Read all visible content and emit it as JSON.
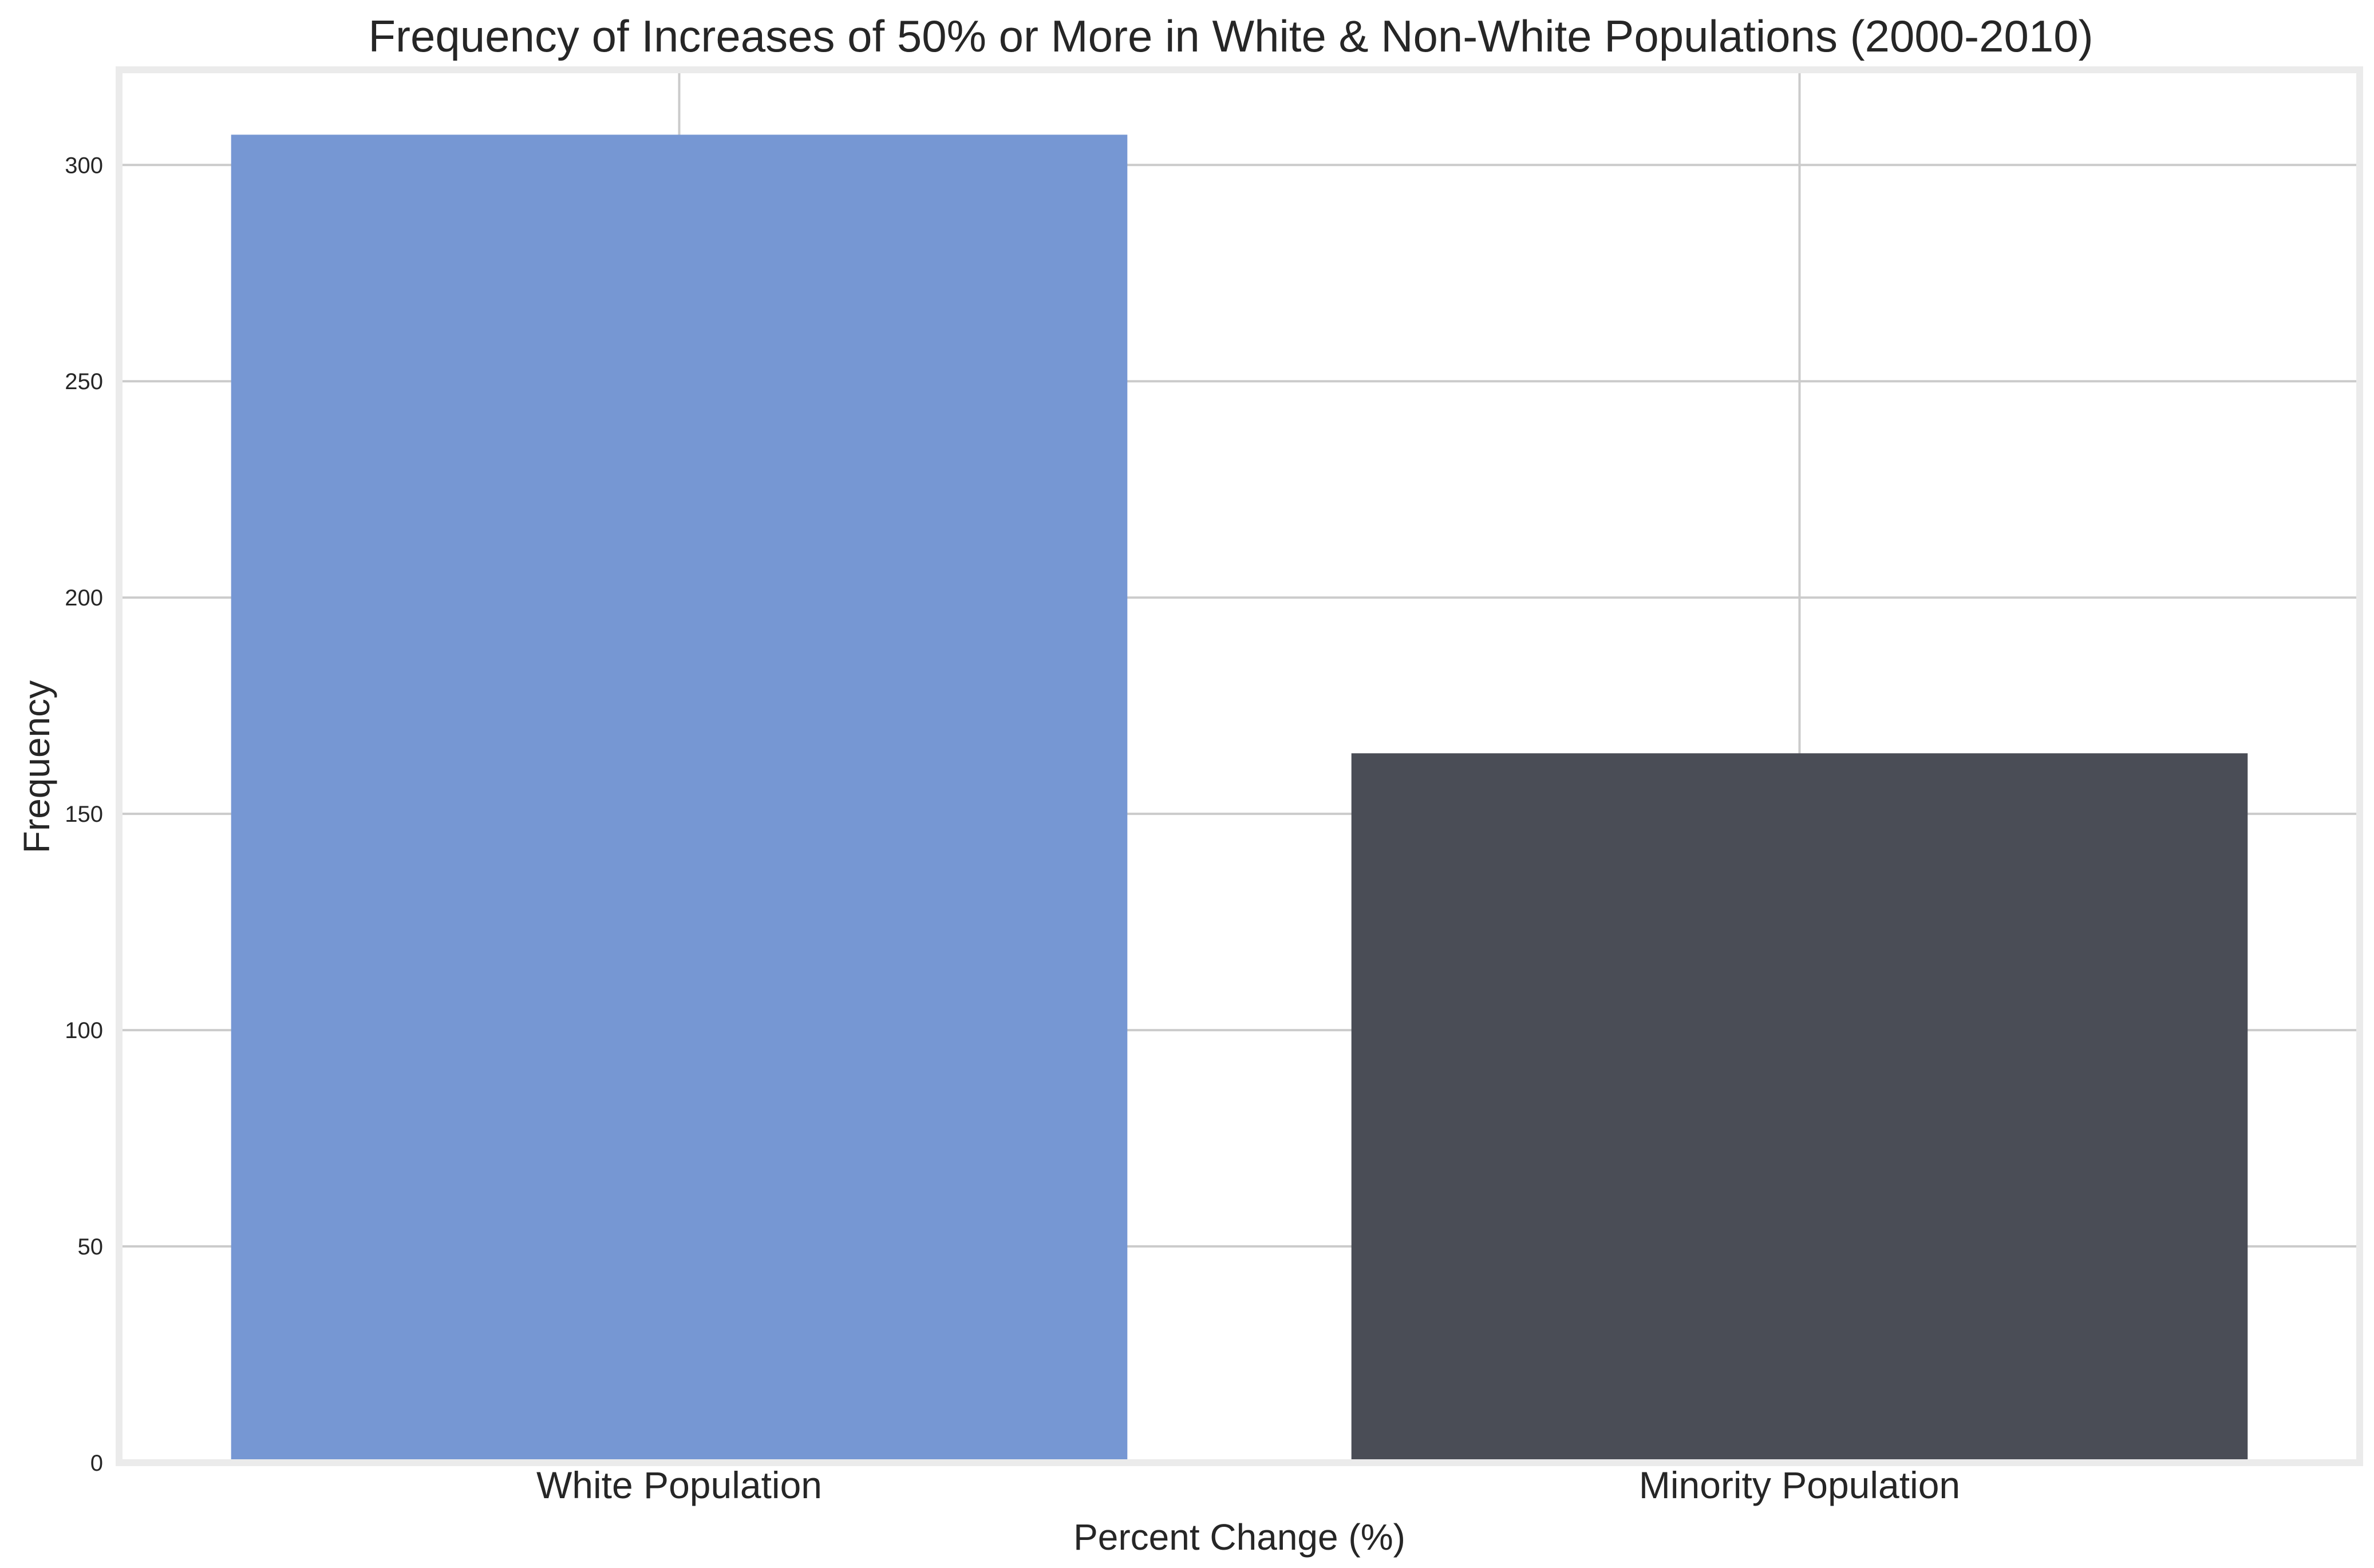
{
  "chart_data": {
    "type": "bar",
    "title": "Frequency of Increases of 50% or More in White & Non-White Populations (2000-2010)",
    "xlabel": "Percent Change (%)",
    "ylabel": "Frequency",
    "categories": [
      "White Population",
      "Minority Population"
    ],
    "values": [
      307,
      164
    ],
    "colors": [
      "#7697d3",
      "#4a4d56"
    ],
    "ylim": [
      0,
      322
    ],
    "yticks": [
      0,
      50,
      100,
      150,
      200,
      250,
      300
    ],
    "grid": true,
    "legend": "none"
  }
}
